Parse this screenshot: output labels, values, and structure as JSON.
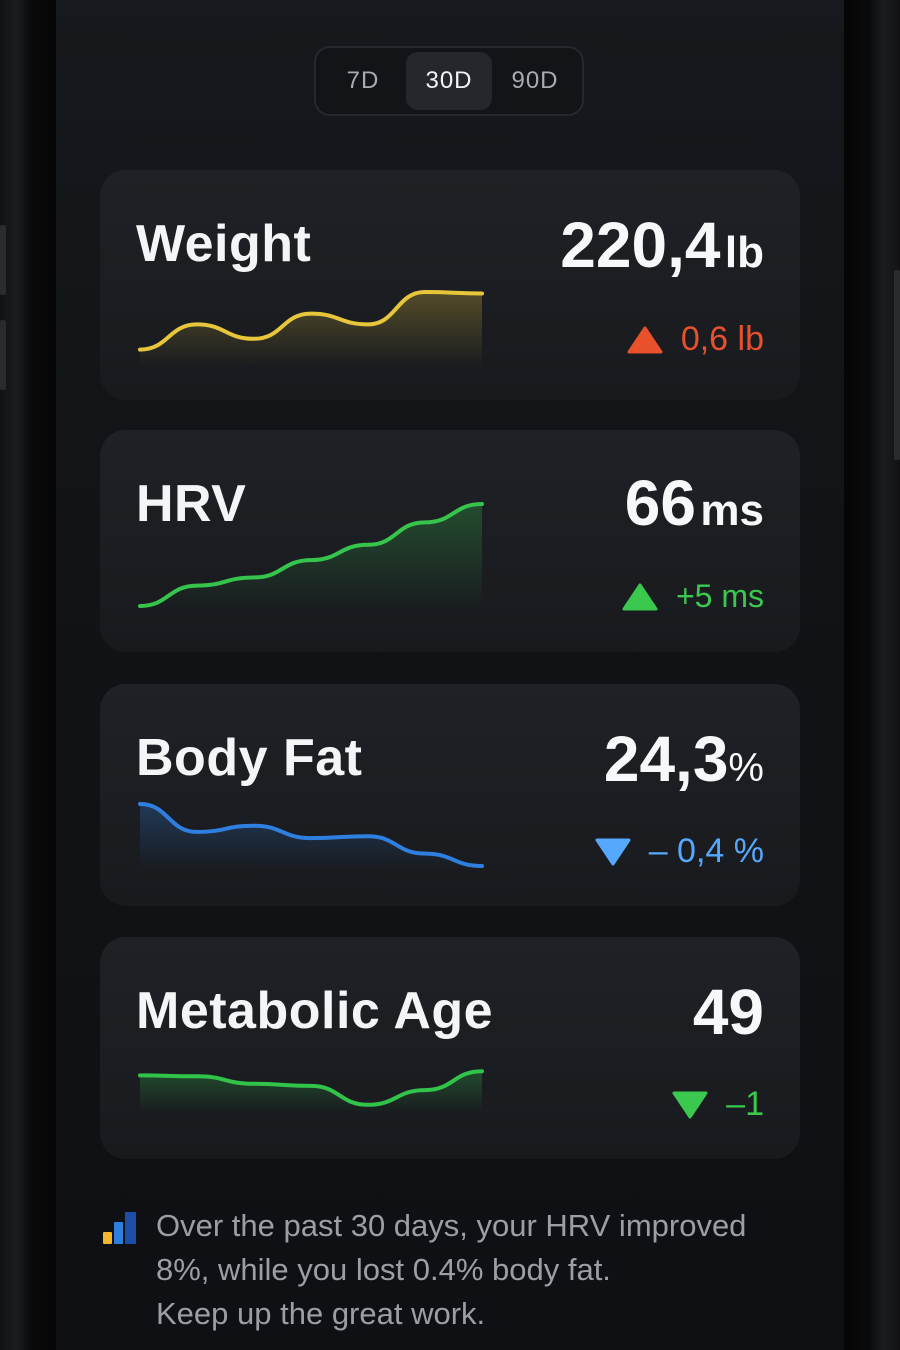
{
  "range_selector": {
    "options": [
      "7D",
      "30D",
      "90D"
    ],
    "selected": "30D"
  },
  "colors": {
    "weight": "#e7c63c",
    "hrv": "#37c44c",
    "body_fat": "#2f7fe0",
    "metabolic_age": "#32c34a",
    "delta_up_bad": "#e8512c",
    "delta_up_good": "#3ac94e",
    "delta_down_good_blue": "#56a8ff",
    "delta_down_good_green": "#3ac94e"
  },
  "cards": [
    {
      "title": "Weight",
      "value": "220,4",
      "unit": "lb",
      "delta_icon": "triangle-up-icon",
      "delta": "0,6 lb",
      "trend": [
        0.2,
        0.55,
        0.35,
        0.7,
        0.55,
        1.0,
        0.98
      ]
    },
    {
      "title": "HRV",
      "value": "66",
      "unit": "ms",
      "delta_icon": "triangle-up-icon",
      "delta": "+5 ms",
      "trend": [
        0.0,
        0.2,
        0.28,
        0.45,
        0.6,
        0.82,
        1.0
      ]
    },
    {
      "title": "Body Fat",
      "value": "24,3",
      "unit": "%",
      "delta_icon": "triangle-down-icon",
      "delta": "– 0,4 %",
      "trend": [
        1.0,
        0.55,
        0.65,
        0.45,
        0.48,
        0.2,
        0.0
      ]
    },
    {
      "title": "Metabolic Age",
      "value": "49",
      "unit": "",
      "delta_icon": "triangle-down-icon",
      "delta": "–1",
      "trend": [
        0.8,
        0.78,
        0.6,
        0.55,
        0.1,
        0.45,
        0.9
      ]
    }
  ],
  "summary": {
    "icon": "bar-chart-icon",
    "line1": "Over the past 30 days, your HRV improved",
    "line2": "8%, while you lost 0.4% body fat.",
    "line3": "Keep up the great work."
  }
}
